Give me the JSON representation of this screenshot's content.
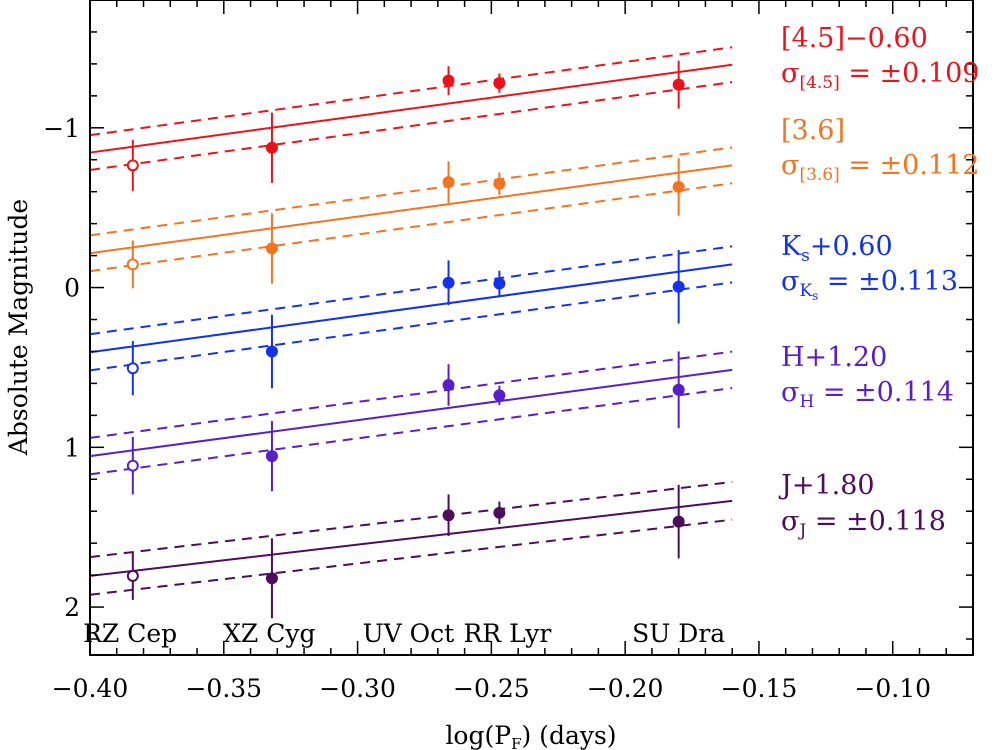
{
  "chart_data": {
    "type": "scatter",
    "title": "",
    "xlabel": "log(P_F) (days)",
    "xlabel_main": "log(P",
    "xlabel_sub": "F",
    "xlabel_tail": ") (days)",
    "ylabel": "Absolute Magnitude",
    "xlim": [
      -0.4,
      -0.07
    ],
    "ylim": [
      2.3,
      -1.8
    ],
    "y_inverted": true,
    "x_ticks": [
      -0.4,
      -0.35,
      -0.3,
      -0.25,
      -0.2,
      -0.15,
      -0.1
    ],
    "x_tick_labels": [
      "−0.40",
      "−0.35",
      "−0.30",
      "−0.25",
      "−0.20",
      "−0.15",
      "−0.10"
    ],
    "y_ticks": [
      -1,
      0,
      1,
      2
    ],
    "y_tick_labels": [
      "−1",
      "0",
      "1",
      "2"
    ],
    "star_labels": [
      {
        "name": "RZ Cep",
        "x": -0.385
      },
      {
        "name": "XZ Cyg",
        "x": -0.333
      },
      {
        "name": "UV Oct",
        "x": -0.281
      },
      {
        "name": "RR Lyr",
        "x": -0.244
      },
      {
        "name": "SU Dra",
        "x": -0.18
      }
    ],
    "series": [
      {
        "name": "[4.5]",
        "label_main": "[4.5]−0.60",
        "sigma_main": "σ",
        "sigma_sub": "[4.5]",
        "sigma_tail": " = ±0.109",
        "color": "#e8131b",
        "line": {
          "x": [
            -0.4,
            -0.16
          ],
          "y": [
            -0.845,
            -1.395
          ]
        },
        "band": 0.109,
        "points": [
          {
            "x": -0.384,
            "y": -0.765,
            "err": 0.16,
            "open": true
          },
          {
            "x": -0.332,
            "y": -0.875,
            "err": 0.22,
            "open": false
          },
          {
            "x": -0.266,
            "y": -1.295,
            "err": 0.09,
            "open": false
          },
          {
            "x": -0.247,
            "y": -1.28,
            "err": 0.06,
            "open": false
          },
          {
            "x": -0.18,
            "y": -1.27,
            "err": 0.15,
            "open": false
          }
        ]
      },
      {
        "name": "[3.6]",
        "label_main": "[3.6]",
        "sigma_main": "σ",
        "sigma_sub": "[3.6]",
        "sigma_tail": " = ±0.112",
        "color": "#f27420",
        "line": {
          "x": [
            -0.4,
            -0.16
          ],
          "y": [
            -0.215,
            -0.765
          ]
        },
        "band": 0.112,
        "points": [
          {
            "x": -0.384,
            "y": -0.145,
            "err": 0.15,
            "open": true
          },
          {
            "x": -0.332,
            "y": -0.245,
            "err": 0.22,
            "open": false
          },
          {
            "x": -0.266,
            "y": -0.66,
            "err": 0.13,
            "open": false
          },
          {
            "x": -0.247,
            "y": -0.65,
            "err": 0.07,
            "open": false
          },
          {
            "x": -0.18,
            "y": -0.63,
            "err": 0.18,
            "open": false
          }
        ]
      },
      {
        "name": "Ks",
        "label_main": "K",
        "label_sub": "s",
        "label_tail": "+0.60",
        "sigma_main": "σ",
        "sigma_sub": "K",
        "sigma_subsub": "s",
        "sigma_tail": " = ±0.113",
        "color": "#1432e8",
        "line": {
          "x": [
            -0.4,
            -0.16
          ],
          "y": [
            0.405,
            -0.145
          ]
        },
        "band": 0.113,
        "points": [
          {
            "x": -0.384,
            "y": 0.505,
            "err": 0.17,
            "open": true
          },
          {
            "x": -0.332,
            "y": 0.4,
            "err": 0.23,
            "open": false
          },
          {
            "x": -0.266,
            "y": -0.03,
            "err": 0.14,
            "open": false
          },
          {
            "x": -0.247,
            "y": -0.025,
            "err": 0.08,
            "open": false
          },
          {
            "x": -0.18,
            "y": -0.005,
            "err": 0.23,
            "open": false
          }
        ]
      },
      {
        "name": "H",
        "label_main": "H+1.20",
        "sigma_main": "σ",
        "sigma_sub": "H",
        "sigma_tail": " = ±0.114",
        "color": "#5a1ec8",
        "line": {
          "x": [
            -0.4,
            -0.16
          ],
          "y": [
            1.055,
            0.515
          ]
        },
        "band": 0.114,
        "points": [
          {
            "x": -0.384,
            "y": 1.115,
            "err": 0.18,
            "open": true
          },
          {
            "x": -0.332,
            "y": 1.055,
            "err": 0.22,
            "open": false
          },
          {
            "x": -0.266,
            "y": 0.61,
            "err": 0.13,
            "open": false
          },
          {
            "x": -0.247,
            "y": 0.675,
            "err": 0.06,
            "open": false
          },
          {
            "x": -0.18,
            "y": 0.64,
            "err": 0.24,
            "open": false
          }
        ]
      },
      {
        "name": "J",
        "label_main": "J+1.80",
        "sigma_main": "σ",
        "sigma_sub": "J",
        "sigma_tail": " = ±0.118",
        "color": "#4e0c5c",
        "line": {
          "x": [
            -0.4,
            -0.16
          ],
          "y": [
            1.805,
            1.335
          ]
        },
        "band": 0.118,
        "points": [
          {
            "x": -0.384,
            "y": 1.805,
            "err": 0.15,
            "open": true
          },
          {
            "x": -0.332,
            "y": 1.82,
            "err": 0.25,
            "open": false
          },
          {
            "x": -0.266,
            "y": 1.425,
            "err": 0.13,
            "open": false
          },
          {
            "x": -0.247,
            "y": 1.41,
            "err": 0.07,
            "open": false
          },
          {
            "x": -0.18,
            "y": 1.465,
            "err": 0.23,
            "open": false
          }
        ]
      }
    ]
  }
}
